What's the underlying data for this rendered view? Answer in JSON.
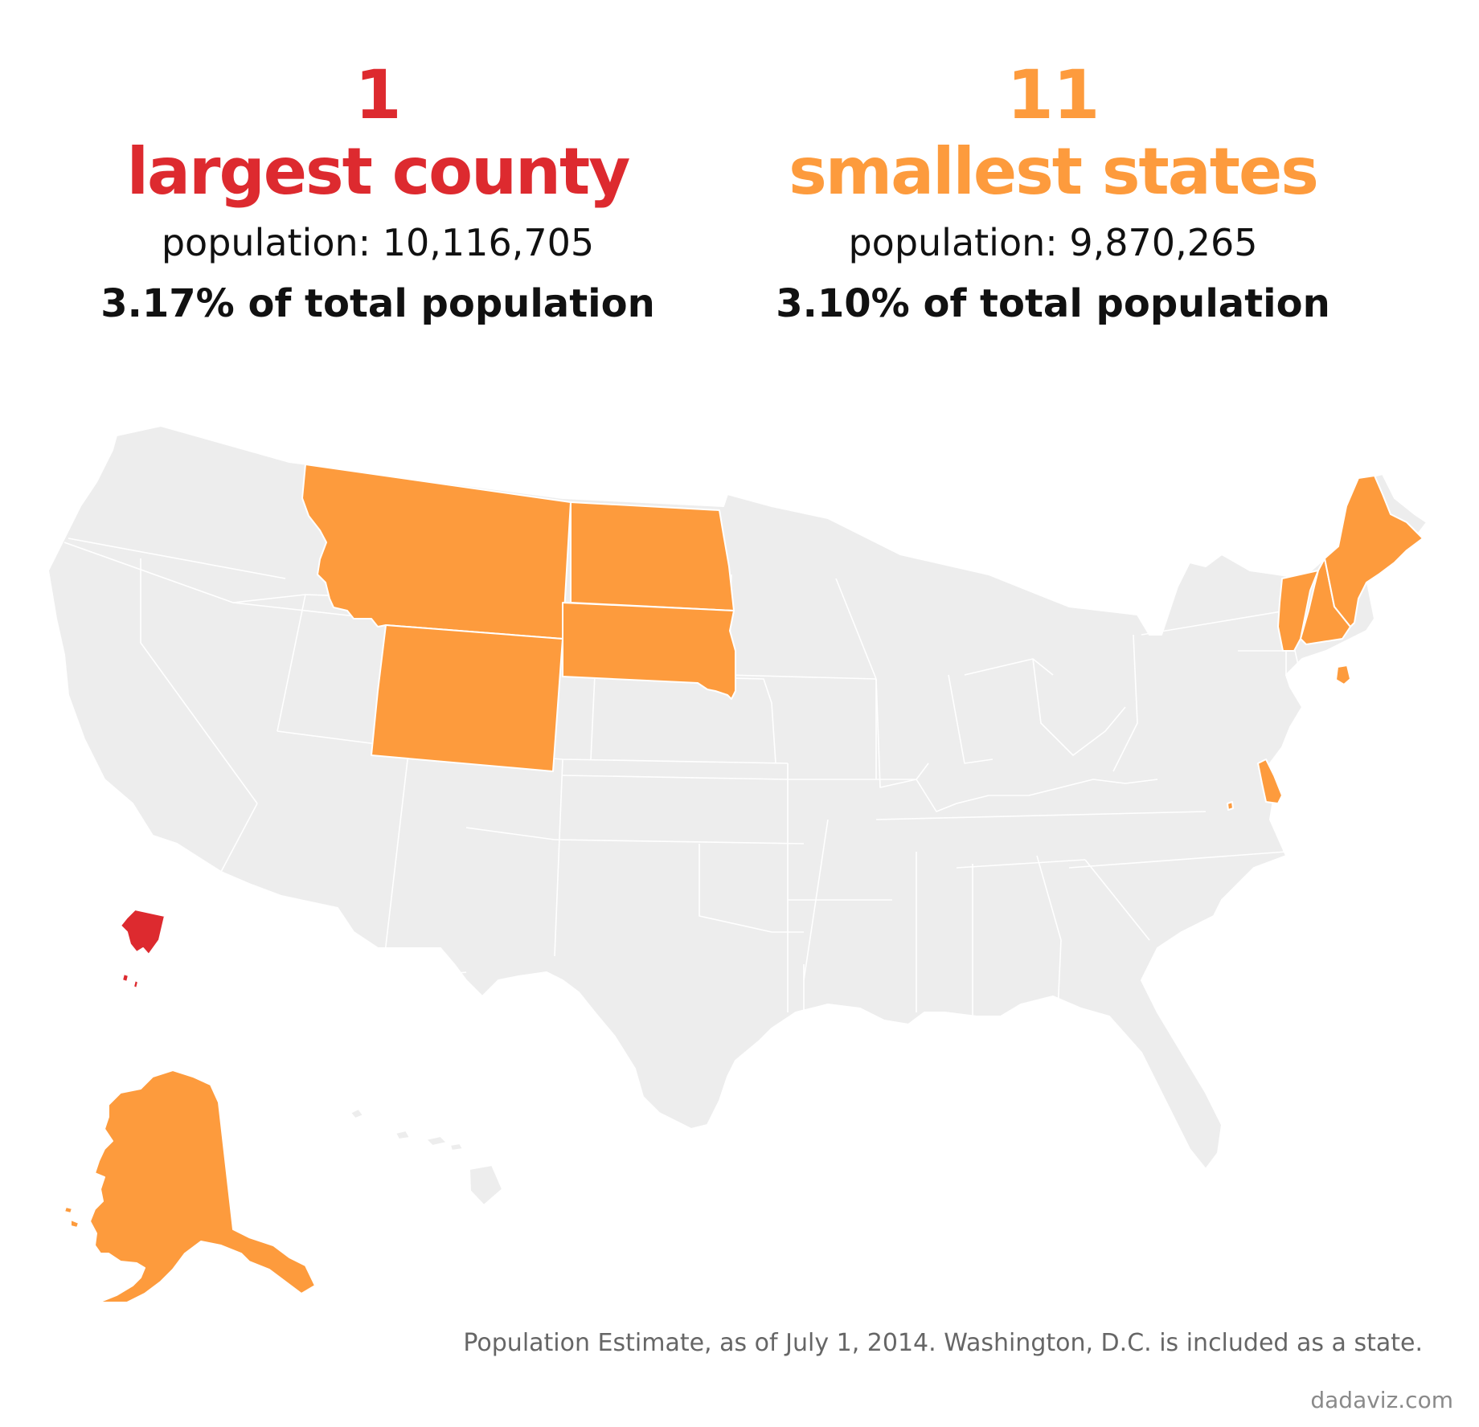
{
  "colors": {
    "county": "#dd2a2f",
    "states": "#fd9b3d",
    "land": "#ededed",
    "border": "#ffffff",
    "text": "#111111",
    "note": "#666666"
  },
  "left": {
    "number": "1",
    "label": "largest county",
    "population": "population: 10,116,705",
    "share": "3.17% of total population"
  },
  "right": {
    "number": "11",
    "label": "smallest states",
    "population": "population: 9,870,265",
    "share": "3.10% of total population"
  },
  "map": {
    "highlighted_county": "Los Angeles County",
    "highlighted_states": [
      "Alaska",
      "Montana",
      "Wyoming",
      "North Dakota",
      "South Dakota",
      "Vermont",
      "New Hampshire",
      "Maine",
      "Rhode Island",
      "Delaware",
      "District of Columbia"
    ]
  },
  "footnote": "Population Estimate, as of July 1, 2014. Washington, D.C. is included as a state.",
  "credit": "dadaviz.com"
}
